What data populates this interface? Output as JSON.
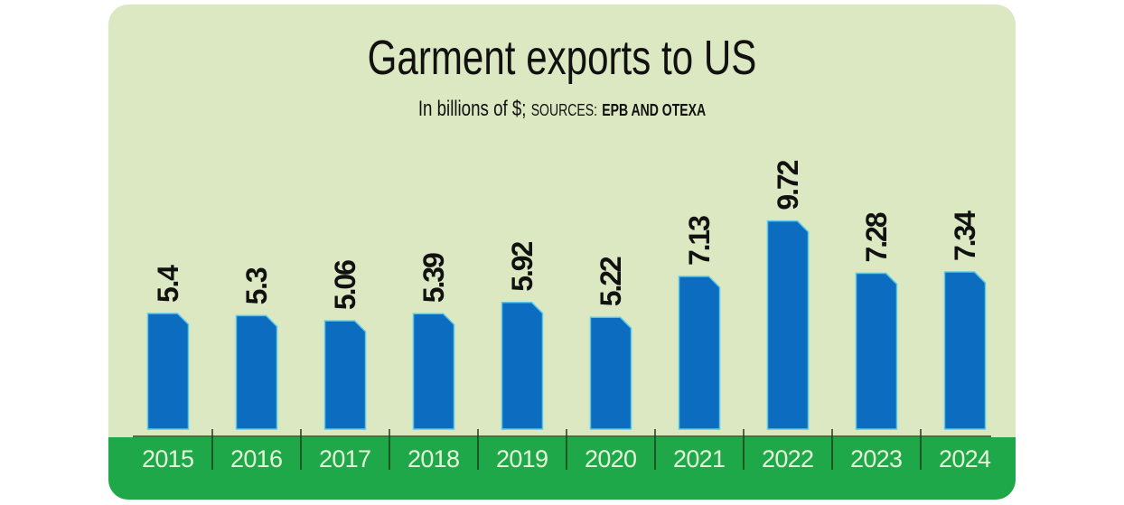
{
  "chart_data": {
    "type": "bar",
    "title": "Garment exports to US",
    "subtitle": {
      "unit": "In billions of $;",
      "sources_label": "SOURCES:",
      "sources": "EPB AND OTEXA"
    },
    "categories": [
      "2015",
      "2016",
      "2017",
      "2018",
      "2019",
      "2020",
      "2021",
      "2022",
      "2023",
      "2024"
    ],
    "values": [
      5.4,
      5.3,
      5.06,
      5.39,
      5.92,
      5.22,
      7.13,
      9.72,
      7.28,
      7.34
    ],
    "value_labels": [
      "5.4",
      "5.3",
      "5.06",
      "5.39",
      "5.92",
      "5.22",
      "7.13",
      "9.72",
      "7.28",
      "7.34"
    ],
    "xlabel": "",
    "ylabel": "",
    "ylim": [
      0,
      10
    ],
    "grid": false,
    "legend": "none"
  },
  "colors": {
    "background": "#dbe8c2",
    "bar": "#0b6cc0",
    "bar_edge": "#5cc8e8",
    "axis_band": "#1fa84a",
    "axis_text": "#e6f7d9",
    "label_text": "#111111"
  }
}
